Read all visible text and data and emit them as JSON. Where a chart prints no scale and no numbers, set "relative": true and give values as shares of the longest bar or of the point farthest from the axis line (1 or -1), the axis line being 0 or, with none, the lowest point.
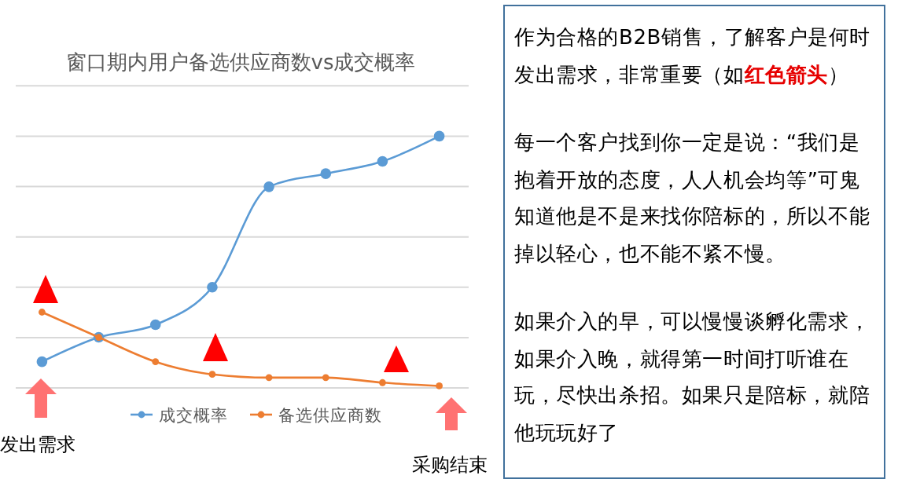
{
  "chart_data": [
    {
      "type": "line",
      "title": "窗口期内用户备选供应商数vs成交概率",
      "relative": true,
      "categories": [
        null,
        null,
        null,
        null,
        null,
        null,
        null,
        null
      ],
      "series": [
        {
          "name": "成交概率",
          "color": "#5b9bd5",
          "values": [
            0.104,
            0.201,
            0.251,
            0.4,
            0.799,
            0.851,
            0.9,
            1
          ]
        },
        {
          "name": "备选供应商数",
          "color": "#ed7d31",
          "values": [
            0.301,
            0.201,
            0.104,
            0.054,
            0.041,
            0.041,
            0.021,
            0.008
          ]
        }
      ],
      "grid": "y",
      "legend": "bottom",
      "marker": "circle",
      "line_style": "solid",
      "annotations": [
        "发出需求",
        "采购结束"
      ]
    },
    {
      "type": "other",
      "annotations": [
        "作为合格的B2B销售，了解客户是何时发出需求，非常重要（如",
        "红色箭头",
        "）",
        "每一个客户找到你一定是说：“我们是抱着开放的态度，人人机会均等”可鬼知道他是不是来找你陪标的，所以不能掉以轻心，也不能不紧不慢。",
        "如果介入的早，可以慢慢谈孵化需求，如果介入晚，就得第一时间打听谁在玩，尽快出杀招。如果只是陪标，就陪他玩玩好了"
      ]
    }
  ]
}
